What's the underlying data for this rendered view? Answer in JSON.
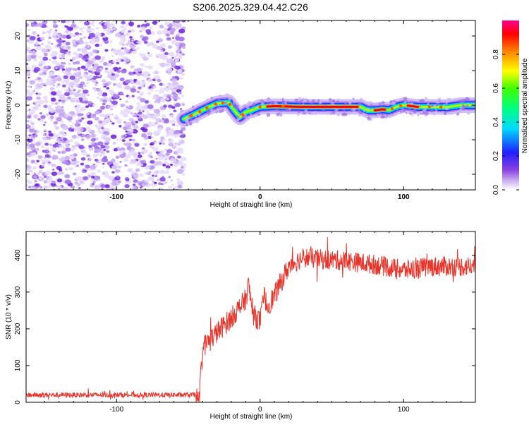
{
  "title": "S206.2025.329.04.42.C26",
  "chart_data": [
    {
      "type": "heatmap",
      "xlabel": "Height of straight line (km)",
      "ylabel": "Frequency (Hz)",
      "xlim": [
        -163,
        150
      ],
      "ylim": [
        -24.5,
        24.5
      ],
      "xticks": [
        "-100",
        "0",
        "100"
      ],
      "yticks": [
        "20",
        "10",
        "0",
        "-10",
        "-20"
      ],
      "colorbar": {
        "label": "Normalized spectral amplitude",
        "range": [
          0,
          1
        ],
        "ticks": [
          "0.0",
          "0.2",
          "0.4",
          "0.6",
          "0.8"
        ]
      },
      "noise_region_x": [
        -163,
        -53
      ],
      "ridge": {
        "x": [
          -53,
          -45,
          -38,
          -30,
          -22,
          -18,
          -14,
          -10,
          -6,
          0,
          10,
          30,
          50,
          70,
          75,
          80,
          85,
          90,
          95,
          100,
          110,
          120,
          130,
          140,
          150
        ],
        "y": [
          -4,
          -2.5,
          -1,
          0.5,
          0.8,
          -1.5,
          -3.5,
          -2,
          -1.5,
          -0.5,
          -0.3,
          -0.5,
          -0.5,
          -0.5,
          -1.5,
          -1.5,
          -1.2,
          -1.4,
          -0.5,
          0.0,
          -0.5,
          -0.5,
          -0.6,
          0.0,
          0.0
        ],
        "peak_segments": [
          [
            5,
            68
          ],
          [
            80,
            87
          ],
          [
            103,
            110
          ]
        ]
      }
    },
    {
      "type": "line",
      "xlabel": "Height of straight line (km)",
      "ylabel": "SNR (10 * v/v)",
      "xlim": [
        -163,
        150
      ],
      "ylim": [
        0,
        465
      ],
      "xticks": [
        "-100",
        "0",
        "100"
      ],
      "yticks": [
        "0",
        "100",
        "200",
        "300",
        "400"
      ],
      "series": [
        {
          "name": "SNR",
          "color": "#e8352c",
          "x": [
            -163,
            -45,
            -42,
            -40,
            -30,
            -20,
            -10,
            -8,
            -5,
            0,
            3,
            5,
            10,
            15,
            20,
            30,
            40,
            60,
            80,
            100,
            120,
            140,
            150
          ],
          "values": [
            20,
            20,
            30,
            150,
            190,
            230,
            280,
            320,
            240,
            220,
            290,
            260,
            290,
            330,
            370,
            395,
            390,
            385,
            375,
            360,
            370,
            370,
            370
          ]
        }
      ]
    }
  ]
}
